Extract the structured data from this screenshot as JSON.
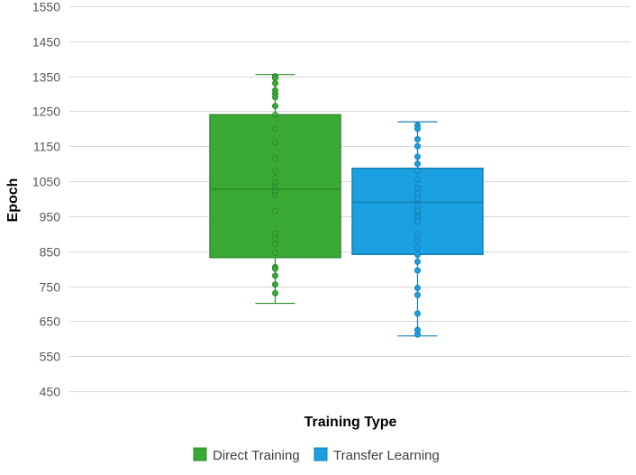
{
  "chart_data": {
    "type": "box",
    "xlabel": "Training Type",
    "ylabel": "Epoch",
    "ylim": [
      450,
      1550
    ],
    "yticks": [
      450,
      550,
      650,
      750,
      850,
      950,
      1050,
      1150,
      1250,
      1350,
      1450,
      1550
    ],
    "grid": true,
    "legend_position": "bottom",
    "series": [
      {
        "name": "Direct Training",
        "color": "#3aaa35",
        "edge_color": "#2e8b2e",
        "min": 701,
        "q1": 832,
        "median": 1027,
        "mean": 1035,
        "q3": 1240,
        "max": 1355,
        "points": [
          1350,
          1345,
          1330,
          1310,
          1300,
          1290,
          1265,
          1240,
          1200,
          1160,
          1115,
          1080,
          1060,
          1045,
          1035,
          1020,
          1010,
          965,
          900,
          885,
          870,
          845,
          805,
          800,
          780,
          755,
          730
        ]
      },
      {
        "name": "Transfer Learning",
        "color": "#1a9fe0",
        "edge_color": "#1580b8",
        "min": 608,
        "q1": 841,
        "median": 990,
        "mean": 955,
        "q3": 1087,
        "max": 1220,
        "points": [
          1210,
          1200,
          1170,
          1150,
          1120,
          1100,
          1080,
          1055,
          1030,
          1015,
          1000,
          980,
          965,
          950,
          935,
          900,
          880,
          860,
          840,
          820,
          795,
          745,
          725,
          672,
          625,
          612
        ]
      }
    ]
  }
}
